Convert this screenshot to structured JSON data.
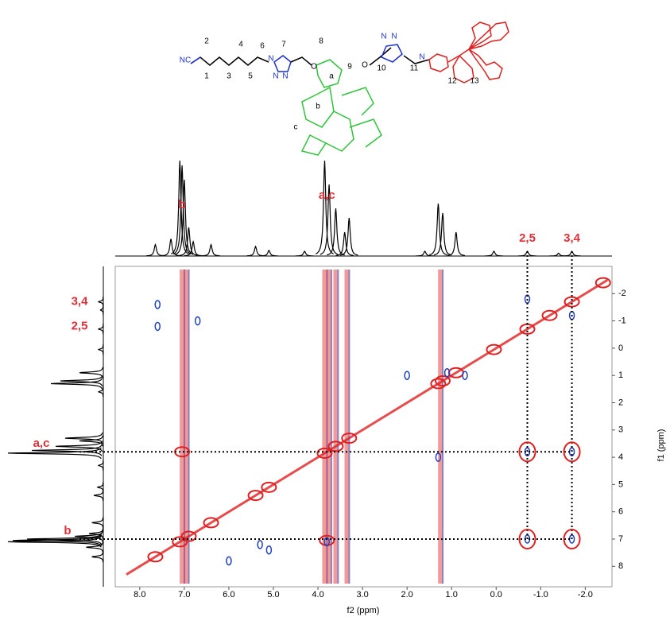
{
  "chart_data": {
    "type": "nmr2d",
    "x_label": "f2 (ppm)",
    "y_label": "f1 (ppm)",
    "xlim": [
      -2.6,
      8.55
    ],
    "ylim": [
      -3,
      8.75
    ],
    "x_reverse": true,
    "y_reverse": true,
    "xticks": [
      {
        "value": 8,
        "label": "8.0"
      },
      {
        "value": 7,
        "label": "7.0"
      },
      {
        "value": 6,
        "label": "6.0"
      },
      {
        "value": 5,
        "label": "5.0"
      },
      {
        "value": 4,
        "label": "4.0"
      },
      {
        "value": 3,
        "label": "3.0"
      },
      {
        "value": 2,
        "label": "2.0"
      },
      {
        "value": 1,
        "label": "1.0"
      },
      {
        "value": 0,
        "label": "0.0"
      },
      {
        "value": -1,
        "label": "-1.0"
      },
      {
        "value": -2,
        "label": "-2.0"
      }
    ],
    "yticks": [
      -2,
      -1,
      0,
      1,
      2,
      3,
      4,
      5,
      6,
      7,
      8
    ],
    "projection": {
      "color": "#000000",
      "shifts": [
        7.65,
        7.3,
        7.1,
        7.05,
        7.0,
        6.9,
        6.8,
        6.4,
        5.4,
        5.1,
        4.3,
        3.85,
        3.75,
        3.6,
        3.4,
        3.3,
        1.6,
        1.3,
        1.2,
        0.9,
        0.05,
        -0.7,
        -1.4,
        -1.7
      ],
      "heights": [
        12,
        18,
        100,
        95,
        80,
        30,
        15,
        12,
        10,
        6,
        5,
        100,
        75,
        50,
        25,
        40,
        5,
        55,
        45,
        25,
        5,
        5,
        3,
        5
      ]
    },
    "streaks": {
      "color": "#e02020",
      "x": [
        7.05,
        6.95,
        3.85,
        3.75,
        3.6,
        3.35,
        1.25
      ]
    },
    "series": [
      {
        "color": "#e02020",
        "x": [
          7.65,
          7.1,
          6.9,
          6.4,
          5.4,
          5.1,
          3.85,
          3.6,
          3.3,
          1.3,
          1.2,
          0.9,
          0.05,
          -0.7,
          -1.2,
          -1.7,
          -2.4,
          3.8,
          7.05
        ],
        "y": [
          7.65,
          7.1,
          6.9,
          6.4,
          5.4,
          5.1,
          3.85,
          3.6,
          3.3,
          1.3,
          1.2,
          0.9,
          0.05,
          -0.7,
          -1.2,
          -1.7,
          -2.4,
          7.05,
          3.8
        ]
      },
      {
        "color": "#2040c0",
        "x": [
          7.6,
          7.6,
          6.7,
          1.1,
          0.7,
          1.3,
          2.0,
          -0.7,
          -1.7,
          -0.7,
          -1.7,
          -0.7,
          -1.7,
          5.3,
          5.1,
          3.8,
          6.0
        ],
        "y": [
          -1.6,
          -0.8,
          -1.0,
          0.9,
          1.0,
          4.0,
          1.0,
          3.8,
          3.8,
          7.0,
          7.0,
          -1.8,
          -1.2,
          7.2,
          7.4,
          7.1,
          7.8
        ]
      }
    ],
    "guides": {
      "color": "#000000",
      "x": [
        -0.7,
        -1.7
      ],
      "y": [
        3.8,
        7.0
      ]
    },
    "annotations_top": [
      {
        "text": "b",
        "x": 7.05
      },
      {
        "text": "a,c",
        "x": 3.8
      },
      {
        "text": "2,5",
        "x": -0.7
      },
      {
        "text": "3,4",
        "x": -1.7
      }
    ],
    "annotations_left": [
      {
        "text": "3,4",
        "y": -1.7
      },
      {
        "text": "2,5",
        "y": -0.8
      },
      {
        "text": "a,c",
        "y": 3.8
      },
      {
        "text": "b",
        "y": 7.0
      }
    ],
    "structure_labels": [
      "NC",
      "1",
      "2",
      "3",
      "4",
      "5",
      "6",
      "7",
      "8",
      "a",
      "b",
      "c",
      "9",
      "10",
      "11",
      "12",
      "13",
      "N",
      "N",
      "N",
      "N",
      "N",
      "N",
      "O",
      "O"
    ]
  }
}
